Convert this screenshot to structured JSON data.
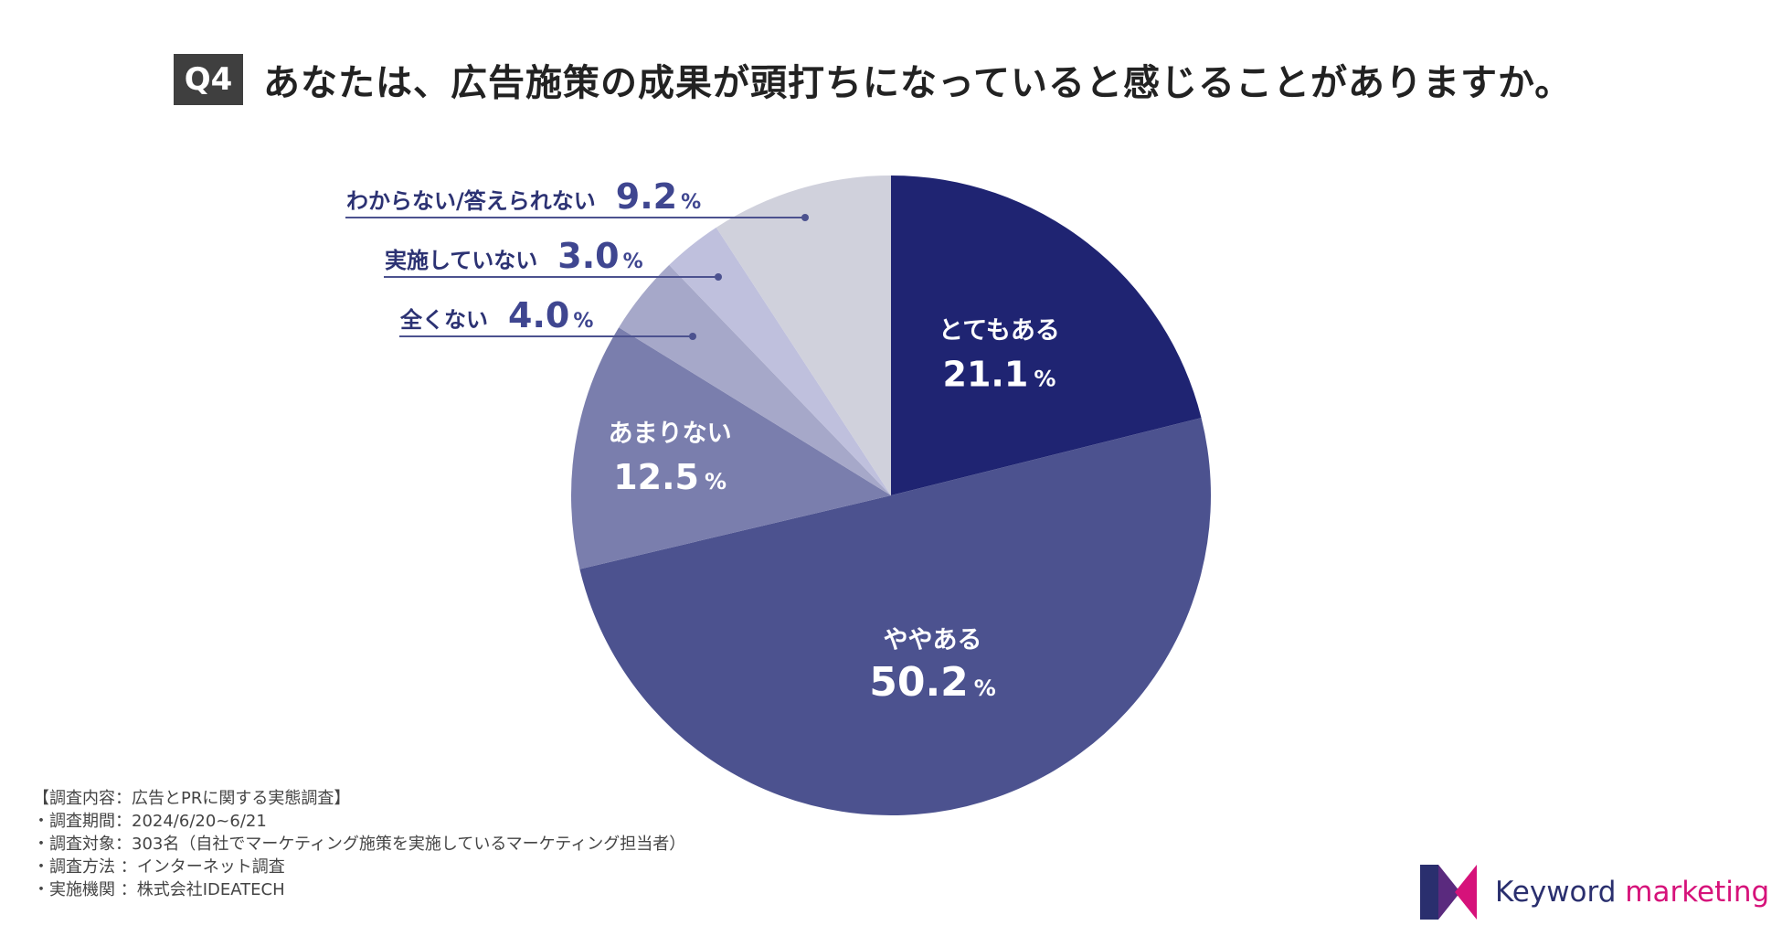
{
  "header": {
    "badge": "Q4",
    "title": "あなたは、広告施策の成果が頭打ちになっていると感じることがありますか。"
  },
  "chart_data": {
    "type": "pie",
    "unit": "%",
    "slices": [
      {
        "label": "とてもある",
        "value": 21.1,
        "color": "#1f2472"
      },
      {
        "label": "ややある",
        "value": 50.2,
        "color": "#4c528f"
      },
      {
        "label": "あまりない",
        "value": 12.5,
        "color": "#7a7ead"
      },
      {
        "label": "全くない",
        "value": 4.0,
        "color": "#a6a8c9"
      },
      {
        "label": "実施していない",
        "value": 3.0,
        "color": "#bfc0dd"
      },
      {
        "label": "わからない/答えられない",
        "value": 9.2,
        "color": "#d0d1dc"
      }
    ]
  },
  "footnotes": [
    "【調査内容：広告とPRに関する実態調査】",
    "・調査期間：2024/6/20~6/21",
    "・調査対象：303名（自社でマーケティング施策を実施しているマーケティング担当者）",
    "・調査方法 ：インターネット調査",
    "・実施機関 ：株式会社IDEATECH"
  ],
  "logo": {
    "brand": "Keyword",
    "suffix": " marketing",
    "colors": [
      "#2a2f6e",
      "#d6127a"
    ]
  }
}
